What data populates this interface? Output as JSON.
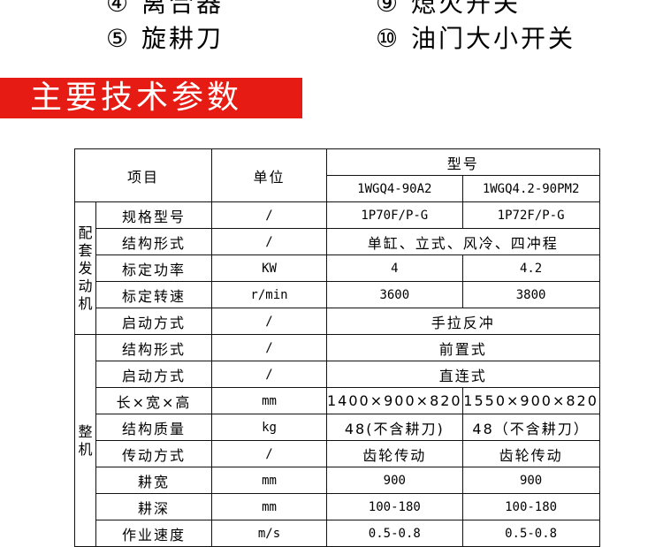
{
  "legend": {
    "items": [
      {
        "num": "④",
        "label": "离合器"
      },
      {
        "num": "⑨",
        "label": "熄火开关"
      },
      {
        "num": "⑤",
        "label": "旋耕刀"
      },
      {
        "num": "⑩",
        "label": "油门大小开关"
      }
    ]
  },
  "section_title": "主要技术参数",
  "table": {
    "header": {
      "item": "项目",
      "unit": "单位",
      "model": "型号",
      "models": [
        "1WGQ4-90A2",
        "1WGQ4.2-90PM2"
      ]
    },
    "groups": [
      {
        "name": "配套发动机",
        "rows": [
          {
            "item": "规格型号",
            "unit": "/",
            "values": [
              "1P70F/P-G",
              "1P72F/P-G"
            ]
          },
          {
            "item": "结构形式",
            "unit": "/",
            "merged": "单缸、立式、风冷、四冲程"
          },
          {
            "item": "标定功率",
            "unit": "KW",
            "values": [
              "4",
              "4.2"
            ]
          },
          {
            "item": "标定转速",
            "unit": "r/min",
            "values": [
              "3600",
              "3800"
            ]
          },
          {
            "item": "启动方式",
            "unit": "/",
            "merged": "手拉反冲"
          }
        ]
      },
      {
        "name": "整机",
        "rows": [
          {
            "item": "结构形式",
            "unit": "/",
            "merged": "前置式"
          },
          {
            "item": "启动方式",
            "unit": "/",
            "merged": "直连式"
          },
          {
            "item": "长×宽×高",
            "unit": "mm",
            "values": [
              "1400×900×820",
              "1550×900×820"
            ]
          },
          {
            "item": "结构质量",
            "unit": "kg",
            "values": [
              "48(不含耕刀)",
              "48（不含耕刀）"
            ]
          },
          {
            "item": "传动方式",
            "unit": "/",
            "values": [
              "齿轮传动",
              "齿轮传动"
            ]
          },
          {
            "item": "耕宽",
            "unit": "mm",
            "values": [
              "900",
              "900"
            ]
          },
          {
            "item": "耕深",
            "unit": "mm",
            "values": [
              "100-180",
              "100-180"
            ]
          },
          {
            "item": "作业速度",
            "unit": "m/s",
            "values": [
              "0.5-0.8",
              "0.5-0.8"
            ]
          }
        ]
      }
    ]
  },
  "colors": {
    "banner": "#e51b14"
  }
}
